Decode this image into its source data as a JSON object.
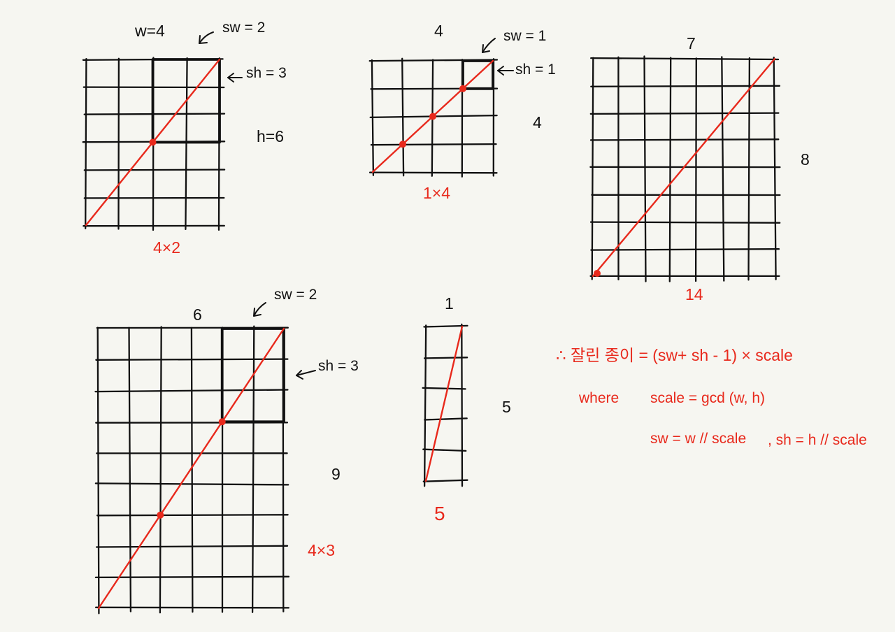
{
  "colors": {
    "ink": "#111111",
    "accent": "#e8291c",
    "paper": "#f6f6f1"
  },
  "grids": [
    {
      "cols": 4,
      "rows": 6,
      "highlight": {
        "cols": 2,
        "rows": 3
      },
      "origin_dot": false,
      "top_label": "w=4",
      "side_label": "h=6",
      "result": "4×2",
      "sw_label": "sw = 2",
      "sh_label": "sh = 3"
    },
    {
      "cols": 4,
      "rows": 4,
      "highlight": {
        "cols": 1,
        "rows": 1
      },
      "origin_dot": false,
      "top_label": "4",
      "side_label": "4",
      "result": "1×4",
      "sw_label": "sw = 1",
      "sh_label": "sh = 1"
    },
    {
      "cols": 7,
      "rows": 8,
      "highlight": null,
      "origin_dot": true,
      "top_label": "7",
      "side_label": "8",
      "result": "14"
    },
    {
      "cols": 6,
      "rows": 9,
      "highlight": {
        "cols": 2,
        "rows": 3
      },
      "origin_dot": false,
      "top_label": "6",
      "side_label": "9",
      "result": "4×3",
      "sw_label": "sw = 2",
      "sh_label": "sh = 3"
    },
    {
      "cols": 1,
      "rows": 5,
      "highlight": null,
      "origin_dot": false,
      "top_label": "1",
      "side_label": "5",
      "result": "5"
    }
  ],
  "formula": {
    "main": "∴ 잘린 종이 = (sw+ sh - 1) × scale",
    "where": "where",
    "scale_def": "scale = gcd (w, h)",
    "sw_def": "sw = w // scale",
    "sh_def": ", sh = h // scale"
  }
}
